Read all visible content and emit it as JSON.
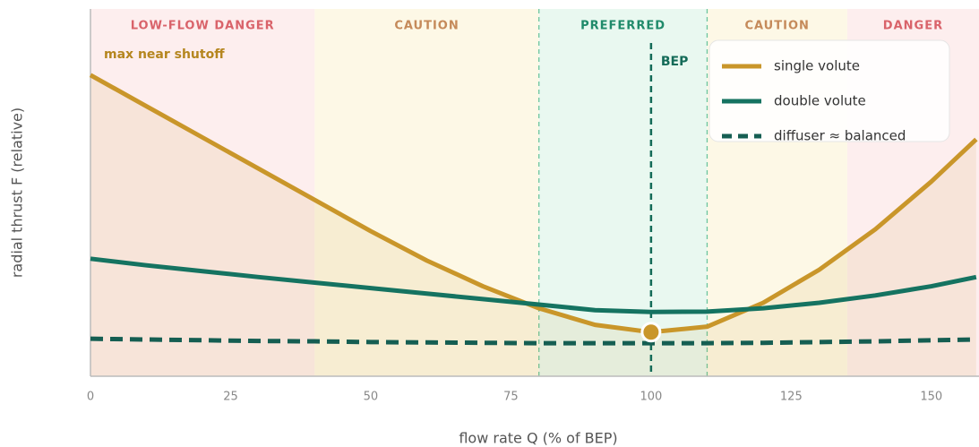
{
  "chart_data": {
    "type": "line",
    "xlabel": "flow rate Q (% of BEP)",
    "ylabel": "radial thrust F (relative)",
    "x": [
      0,
      10,
      20,
      30,
      40,
      50,
      60,
      70,
      80,
      90,
      100,
      110,
      120,
      130,
      140,
      150,
      158
    ],
    "series": [
      {
        "name": "single volute",
        "color": "#c9962a",
        "style": "solid",
        "values": [
          82,
          73.5,
          65,
          56.5,
          48,
          39.5,
          31.5,
          24.5,
          18.5,
          14,
          12,
          13.5,
          20,
          29,
          40,
          53,
          64.5
        ]
      },
      {
        "name": "double volute",
        "color": "#157361",
        "style": "solid",
        "values": [
          32,
          30.2,
          28.6,
          27,
          25.5,
          24,
          22.5,
          21,
          19.5,
          18,
          17.5,
          17.6,
          18.5,
          20,
          22,
          24.5,
          27
        ]
      },
      {
        "name": "diffuser ≈ balanced",
        "color": "#155e52",
        "style": "dashed",
        "values": [
          10.2,
          10,
          9.8,
          9.6,
          9.5,
          9.3,
          9.2,
          9.1,
          9,
          9,
          9,
          9,
          9.1,
          9.3,
          9.5,
          9.8,
          10
        ]
      }
    ],
    "xlim": [
      0,
      158.5
    ],
    "ylim": [
      0,
      100
    ],
    "xticks": [
      0,
      25,
      50,
      75,
      100,
      125,
      150
    ],
    "zones": [
      {
        "label": "LOW-FLOW DANGER",
        "from": 0,
        "to": 40,
        "color": "#fdeeee",
        "text_color": "#d9636a"
      },
      {
        "label": "CAUTION",
        "from": 40,
        "to": 80,
        "color": "#fdf8e6",
        "text_color": "#c58a5a"
      },
      {
        "label": "PREFERRED",
        "from": 80,
        "to": 110,
        "color": "#e9f8f0",
        "text_color": "#1f8a6a"
      },
      {
        "label": "CAUTION",
        "from": 110,
        "to": 135,
        "color": "#fdf8e6",
        "text_color": "#c58a5a"
      },
      {
        "label": "DANGER",
        "from": 135,
        "to": 158.5,
        "color": "#fdeeee",
        "text_color": "#d9636a"
      }
    ],
    "bep": {
      "label": "BEP",
      "x": 100,
      "value": 12
    },
    "annotation": "max near shutoff",
    "legend": "upper right"
  }
}
